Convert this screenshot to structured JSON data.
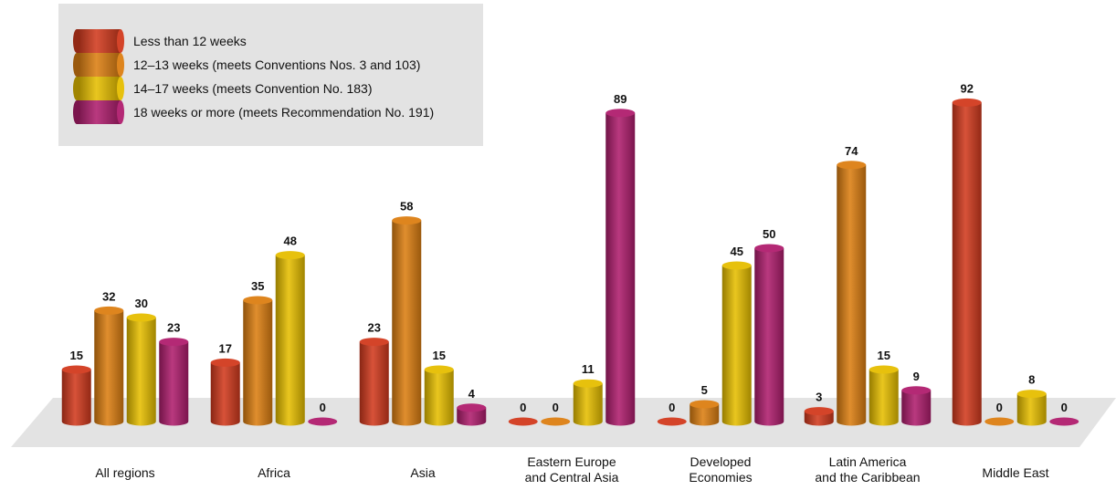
{
  "chart_data": {
    "type": "bar",
    "title": "",
    "xlabel": "",
    "ylabel": "",
    "categories": [
      [
        "All regions"
      ],
      [
        "Africa"
      ],
      [
        "Asia"
      ],
      [
        "Eastern Europe",
        "and Central Asia"
      ],
      [
        "Developed",
        "Economies"
      ],
      [
        "Latin America",
        "and the Caribbean"
      ],
      [
        "Middle East"
      ]
    ],
    "series": [
      {
        "name": "Less than 12 weeks",
        "color": "#d23a1e",
        "values": [
          15,
          17,
          23,
          0,
          0,
          3,
          92
        ]
      },
      {
        "name": "12–13 weeks (meets Conventions Nos. 3 and 103)",
        "color": "#dc7f12",
        "values": [
          32,
          35,
          58,
          0,
          5,
          74,
          0
        ]
      },
      {
        "name": "14–17 weeks (meets Convention No. 183)",
        "color": "#e6be00",
        "values": [
          30,
          48,
          15,
          11,
          45,
          15,
          8
        ]
      },
      {
        "name": "18 weeks or more (meets Recommendation No. 191)",
        "color": "#b01e6e",
        "values": [
          23,
          0,
          4,
          89,
          50,
          9,
          0
        ]
      }
    ],
    "ylim": [
      0,
      92
    ],
    "grid": false,
    "legend_position": "top-left"
  }
}
